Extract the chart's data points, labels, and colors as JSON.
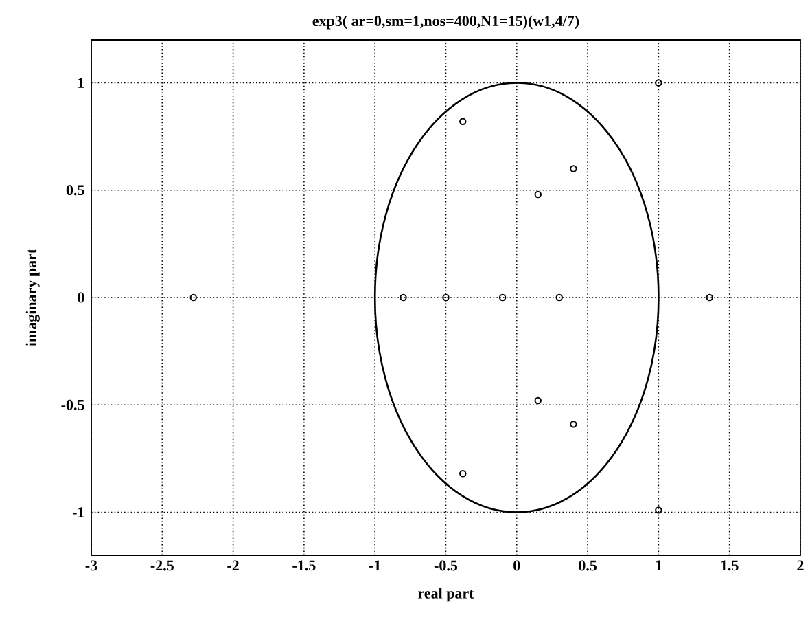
{
  "chart_data": {
    "type": "scatter",
    "title": "exp3( ar=0,sm=1,nos=400,N1=15)(w1,4/7)",
    "xlabel": "real part",
    "ylabel": "imaginary part",
    "xlim": [
      -3,
      2
    ],
    "ylim": [
      -1.2,
      1.2
    ],
    "xticks": [
      -3,
      -2.5,
      -2,
      -1.5,
      -1,
      -0.5,
      0,
      0.5,
      1,
      1.5,
      2
    ],
    "yticks": [
      -1,
      -0.5,
      0,
      0.5,
      1
    ],
    "grid": true,
    "marker": "circle",
    "color": "#000000",
    "x": [
      -2.28,
      -0.8,
      -0.5,
      -0.1,
      0.3,
      1.36,
      -0.38,
      -0.38,
      0.15,
      0.15,
      0.4,
      0.4,
      1.0,
      1.0
    ],
    "values": [
      0,
      0,
      0,
      0,
      0,
      0,
      0.82,
      -0.82,
      0.48,
      -0.48,
      0.6,
      -0.59,
      1.0,
      -0.99
    ]
  }
}
